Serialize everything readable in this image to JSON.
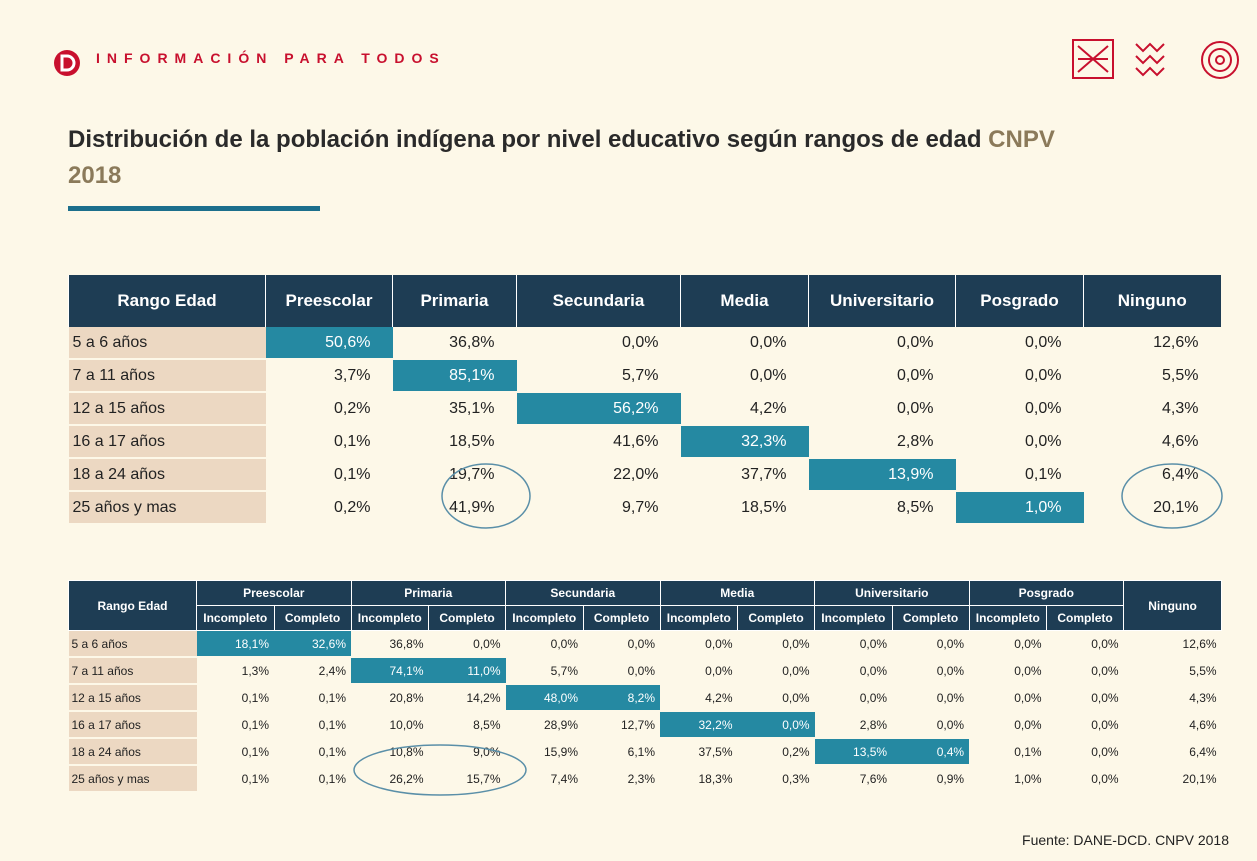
{
  "header": {
    "brand": "INFORMACIÓN PARA TODOS"
  },
  "title": {
    "text": "Distribución de la población indígena por nivel educativo según rangos de edad",
    "highlight": "CNPV 2018"
  },
  "table1": {
    "headers": [
      "Rango Edad",
      "Preescolar",
      "Primaria",
      "Secundaria",
      "Media",
      "Universitario",
      "Posgrado",
      "Ninguno"
    ],
    "rows": [
      [
        "5 a 6 años",
        "50,6%",
        "36,8%",
        "0,0%",
        "0,0%",
        "0,0%",
        "0,0%",
        "12,6%"
      ],
      [
        "7 a 11 años",
        "3,7%",
        "85,1%",
        "5,7%",
        "0,0%",
        "0,0%",
        "0,0%",
        "5,5%"
      ],
      [
        "12 a 15 años",
        "0,2%",
        "35,1%",
        "56,2%",
        "4,2%",
        "0,0%",
        "0,0%",
        "4,3%"
      ],
      [
        "16 a 17 años",
        "0,1%",
        "18,5%",
        "41,6%",
        "32,3%",
        "2,8%",
        "0,0%",
        "4,6%"
      ],
      [
        "18 a 24 años",
        "0,1%",
        "19,7%",
        "22,0%",
        "37,7%",
        "13,9%",
        "0,1%",
        "6,4%"
      ],
      [
        "25 años y mas",
        "0,2%",
        "41,9%",
        "9,7%",
        "18,5%",
        "8,5%",
        "1,0%",
        "20,1%"
      ]
    ]
  },
  "table2": {
    "row_header": "Rango Edad",
    "groups": [
      "Preescolar",
      "Primaria",
      "Secundaria",
      "Media",
      "Universitario",
      "Posgrado"
    ],
    "last_header": "Ninguno",
    "subheaders": [
      "Incompleto",
      "Completo",
      "Incompleto",
      "Completo",
      "Incompleto",
      "Completo",
      "Incompleto",
      "Completo",
      "Incompleto",
      "Completo",
      "Incompleto",
      "Completo"
    ],
    "rows": [
      [
        "5 a 6 años",
        "18,1%",
        "32,6%",
        "36,8%",
        "0,0%",
        "0,0%",
        "0,0%",
        "0,0%",
        "0,0%",
        "0,0%",
        "0,0%",
        "0,0%",
        "0,0%",
        "12,6%"
      ],
      [
        "7 a 11 años",
        "1,3%",
        "2,4%",
        "74,1%",
        "11,0%",
        "5,7%",
        "0,0%",
        "0,0%",
        "0,0%",
        "0,0%",
        "0,0%",
        "0,0%",
        "0,0%",
        "5,5%"
      ],
      [
        "12 a 15 años",
        "0,1%",
        "0,1%",
        "20,8%",
        "14,2%",
        "48,0%",
        "8,2%",
        "4,2%",
        "0,0%",
        "0,0%",
        "0,0%",
        "0,0%",
        "0,0%",
        "4,3%"
      ],
      [
        "16 a 17 años",
        "0,1%",
        "0,1%",
        "10,0%",
        "8,5%",
        "28,9%",
        "12,7%",
        "32,2%",
        "0,0%",
        "2,8%",
        "0,0%",
        "0,0%",
        "0,0%",
        "4,6%"
      ],
      [
        "18 a 24 años",
        "0,1%",
        "0,1%",
        "10,8%",
        "9,0%",
        "15,9%",
        "6,1%",
        "37,5%",
        "0,2%",
        "13,5%",
        "0,4%",
        "0,1%",
        "0,0%",
        "6,4%"
      ],
      [
        "25 años y mas",
        "0,1%",
        "0,1%",
        "26,2%",
        "15,7%",
        "7,4%",
        "2,3%",
        "18,3%",
        "0,3%",
        "7,6%",
        "0,9%",
        "1,0%",
        "0,0%",
        "20,1%"
      ]
    ]
  },
  "source": "Fuente: DANE-DCD. CNPV 2018"
}
